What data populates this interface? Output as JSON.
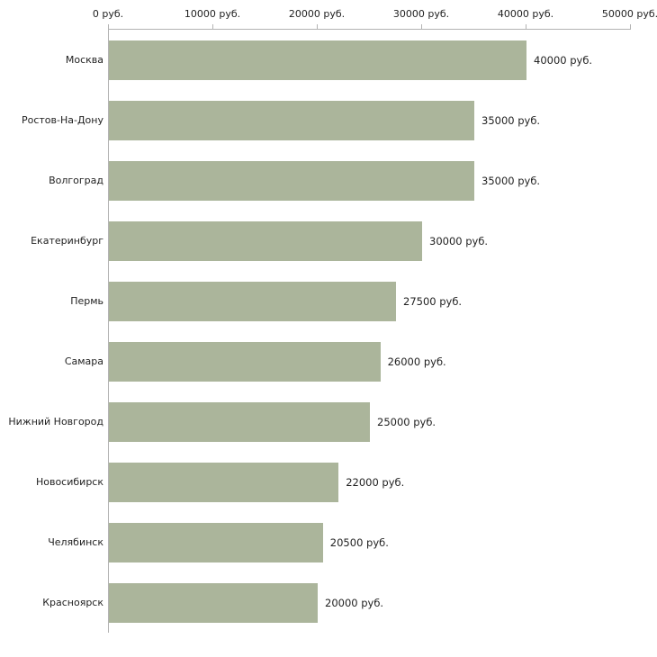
{
  "chart_data": {
    "type": "bar",
    "orientation": "horizontal",
    "title": "",
    "xlabel": "",
    "ylabel": "",
    "xlim": [
      0,
      50000
    ],
    "x_ticks": [
      {
        "value": 0,
        "label": "0 руб."
      },
      {
        "value": 10000,
        "label": "10000 руб."
      },
      {
        "value": 20000,
        "label": "20000 руб."
      },
      {
        "value": 30000,
        "label": "30000 руб."
      },
      {
        "value": 40000,
        "label": "40000 руб."
      },
      {
        "value": 50000,
        "label": "50000 руб."
      }
    ],
    "categories": [
      "Москва",
      "Ростов-На-Дону",
      "Волгоград",
      "Екатеринбург",
      "Пермь",
      "Самара",
      "Нижний Новгород",
      "Новосибирск",
      "Челябинск",
      "Красноярск"
    ],
    "values": [
      40000,
      35000,
      35000,
      30000,
      27500,
      26000,
      25000,
      22000,
      20500,
      20000
    ],
    "value_labels": [
      "40000 руб.",
      "35000 руб.",
      "35000 руб.",
      "30000 руб.",
      "27500 руб.",
      "26000 руб.",
      "25000 руб.",
      "22000 руб.",
      "20500 руб.",
      "20000 руб."
    ],
    "bar_color": "#abb59b",
    "axis_color": "#b3b3b3",
    "text_color": "#222222",
    "grid": false,
    "legend": false
  }
}
